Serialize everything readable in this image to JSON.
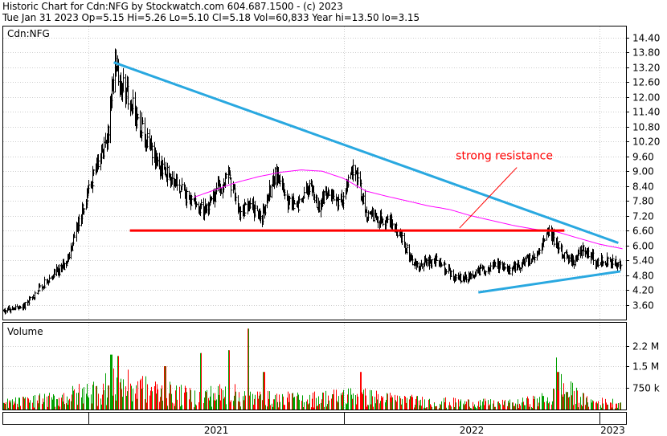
{
  "header": {
    "line1": "Historic Chart for Cdn:NFG by Stockwatch.com 604.687.1500 - (c) 2023",
    "line2": "Tue Jan 31 2023  Op=5.15  Hi=5.26  Lo=5.10  Cl=5.18  Vol=60,833  Year hi=13.50  lo=3.15"
  },
  "colors": {
    "up": "#00a000",
    "down": "#ff0000",
    "price": "#000000",
    "ma": "#ff00ff",
    "trend": "#29a8e0",
    "support": "#ff0000",
    "grid": "#cccccc"
  },
  "chart_data": [
    {
      "type": "line",
      "symbol_label": "Cdn:NFG",
      "y_axis": {
        "ticks": [
          "14.40",
          "13.80",
          "13.20",
          "12.60",
          "12.00",
          "11.40",
          "10.80",
          "10.20",
          "9.60",
          "9.00",
          "8.40",
          "7.80",
          "7.20",
          "6.60",
          "6.00",
          "5.40",
          "4.80",
          "4.20",
          "3.60"
        ],
        "tick_values": [
          14.4,
          13.8,
          13.2,
          12.6,
          12.0,
          11.4,
          10.8,
          10.2,
          9.6,
          9.0,
          8.4,
          7.8,
          7.2,
          6.6,
          6.0,
          5.4,
          4.8,
          4.2,
          3.6
        ],
        "range": [
          3.0,
          14.85
        ]
      },
      "x_axis": {
        "labels": [
          "2021",
          "2022",
          "2023"
        ],
        "range": [
          "2020-09-01",
          "2023-02-08"
        ],
        "year_starts": [
          "2021-01-01",
          "2022-01-01",
          "2023-01-01"
        ]
      },
      "price_series": {
        "x": [
          "2020-09-01",
          "2020-10-01",
          "2020-11-01",
          "2020-12-01",
          "2020-12-20",
          "2021-01-10",
          "2021-01-28",
          "2021-02-08",
          "2021-02-18",
          "2021-03-05",
          "2021-03-25",
          "2021-04-15",
          "2021-05-05",
          "2021-05-25",
          "2021-06-15",
          "2021-07-01",
          "2021-07-20",
          "2021-08-05",
          "2021-08-20",
          "2021-09-05",
          "2021-09-25",
          "2021-10-10",
          "2021-10-25",
          "2021-11-10",
          "2021-11-25",
          "2021-12-10",
          "2021-12-28",
          "2022-01-15",
          "2022-02-01",
          "2022-02-20",
          "2022-03-10",
          "2022-03-25",
          "2022-04-10",
          "2022-04-25",
          "2022-05-15",
          "2022-06-05",
          "2022-06-25",
          "2022-07-15",
          "2022-08-05",
          "2022-08-25",
          "2022-09-15",
          "2022-10-05",
          "2022-10-20",
          "2022-11-01",
          "2022-11-10",
          "2022-11-25",
          "2022-12-10",
          "2022-12-28",
          "2023-01-15",
          "2023-01-31"
        ],
        "close": [
          3.35,
          3.55,
          4.55,
          5.3,
          7.2,
          8.9,
          10.6,
          13.3,
          12.4,
          11.6,
          10.2,
          9.1,
          8.7,
          7.8,
          7.4,
          8.1,
          8.8,
          7.3,
          7.6,
          7.1,
          8.9,
          7.8,
          7.5,
          8.4,
          7.6,
          8.3,
          7.7,
          9.2,
          7.4,
          7.1,
          6.9,
          6.2,
          5.2,
          5.3,
          5.4,
          4.8,
          4.6,
          5.0,
          5.2,
          5.0,
          5.3,
          5.6,
          6.6,
          6.1,
          5.6,
          5.4,
          5.9,
          5.3,
          5.4,
          5.18
        ]
      },
      "moving_average": {
        "x": [
          "2021-06-01",
          "2021-07-01",
          "2021-08-01",
          "2021-09-01",
          "2021-10-01",
          "2021-11-01",
          "2021-12-01",
          "2022-01-01",
          "2022-02-01",
          "2022-03-01",
          "2022-04-01",
          "2022-05-01",
          "2022-06-01",
          "2022-07-01",
          "2022-08-01",
          "2022-09-01",
          "2022-10-01",
          "2022-11-01",
          "2022-12-01",
          "2023-01-01",
          "2023-02-05"
        ],
        "values": [
          7.95,
          8.25,
          8.55,
          8.78,
          8.95,
          9.05,
          9.0,
          8.7,
          8.2,
          8.0,
          7.8,
          7.6,
          7.45,
          7.2,
          7.0,
          6.8,
          6.65,
          6.55,
          6.3,
          6.05,
          5.85
        ]
      },
      "annotations": [
        {
          "type": "trendline",
          "color": "trend",
          "from": {
            "x": "2021-02-06",
            "y": 13.4
          },
          "to": {
            "x": "2023-01-28",
            "y": 6.1
          }
        },
        {
          "type": "trendline",
          "color": "trend",
          "from": {
            "x": "2022-07-12",
            "y": 4.1
          },
          "to": {
            "x": "2023-01-31",
            "y": 4.95
          }
        },
        {
          "type": "hline",
          "color": "support",
          "y": 6.6,
          "from": "2021-03-01",
          "to": "2022-11-12"
        },
        {
          "type": "pointer",
          "label": "strong resistance",
          "from": {
            "x": "2022-09-05",
            "y": 9.15
          },
          "to": {
            "x": "2022-06-15",
            "y": 6.7
          }
        }
      ]
    },
    {
      "type": "bar",
      "title": "Volume",
      "y_axis": {
        "ticks": [
          "2.2 M",
          "1.5 M",
          "750 k"
        ],
        "tick_values": [
          2200000,
          1500000,
          750000
        ],
        "range": [
          0,
          3000000
        ]
      },
      "volume_profile": {
        "x": [
          "2020-09-01",
          "2020-11-15",
          "2021-01-01",
          "2021-02-10",
          "2021-04-01",
          "2021-06-01",
          "2021-07-15",
          "2021-09-01",
          "2021-11-01",
          "2022-01-15",
          "2022-03-01",
          "2022-05-01",
          "2022-07-01",
          "2022-09-01",
          "2022-10-25",
          "2022-11-05",
          "2022-12-15",
          "2023-01-31"
        ],
        "typical": [
          250000,
          420000,
          700000,
          1000000,
          750000,
          500000,
          650000,
          450000,
          400000,
          550000,
          420000,
          300000,
          260000,
          230000,
          450000,
          900000,
          300000,
          260000
        ]
      },
      "volume_spikes": [
        {
          "x": "2021-02-02",
          "value": 1900000
        },
        {
          "x": "2021-02-12",
          "value": 1850000
        },
        {
          "x": "2021-04-20",
          "value": 1500000
        },
        {
          "x": "2021-06-10",
          "value": 1950000
        },
        {
          "x": "2021-07-20",
          "value": 2050000
        },
        {
          "x": "2021-08-16",
          "value": 2800000
        },
        {
          "x": "2021-09-08",
          "value": 1300000
        },
        {
          "x": "2022-01-24",
          "value": 1300000
        },
        {
          "x": "2022-10-30",
          "value": 1800000
        },
        {
          "x": "2022-11-02",
          "value": 1300000
        }
      ]
    }
  ]
}
